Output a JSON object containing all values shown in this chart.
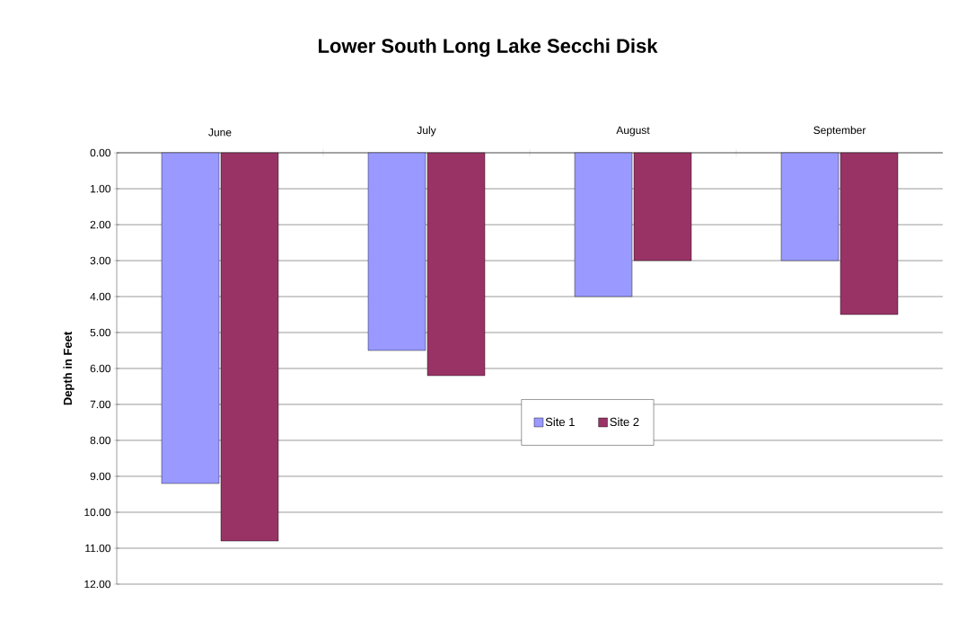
{
  "chart_data": {
    "type": "bar",
    "title": "Lower South Long Lake Secchi Disk",
    "ylabel": "Depth in Feet",
    "categories": [
      "June",
      "July",
      "August",
      "September"
    ],
    "series": [
      {
        "name": "Site 1",
        "color": "#9999ff",
        "values": [
          9.2,
          5.5,
          4.0,
          3.0
        ]
      },
      {
        "name": "Site 2",
        "color": "#993366",
        "values": [
          10.8,
          6.2,
          3.0,
          4.5
        ]
      }
    ],
    "ylim": [
      12,
      0
    ],
    "yticks": [
      {
        "value": 0,
        "label": "0.00"
      },
      {
        "value": 1,
        "label": "1.00"
      },
      {
        "value": 2,
        "label": "2.00"
      },
      {
        "value": 3,
        "label": "3.00"
      },
      {
        "value": 4,
        "label": "4.00"
      },
      {
        "value": 5,
        "label": "5.00"
      },
      {
        "value": 6,
        "label": "6.00"
      },
      {
        "value": 7,
        "label": "7.00"
      },
      {
        "value": 8,
        "label": "8.00"
      },
      {
        "value": 9,
        "label": "9.00"
      },
      {
        "value": 10,
        "label": "10.00"
      },
      {
        "value": 11,
        "label": "11.00"
      },
      {
        "value": 12,
        "label": "12.00"
      }
    ],
    "grid": "y",
    "legend": "center"
  }
}
